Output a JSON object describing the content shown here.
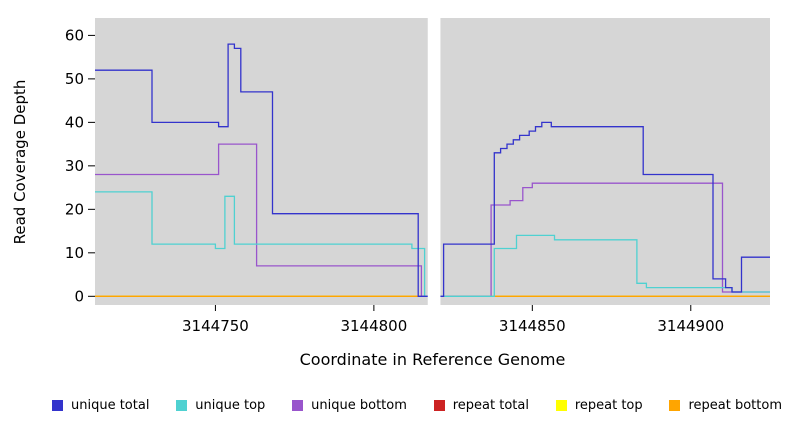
{
  "chart_data": {
    "type": "line",
    "subtype": "step",
    "title": "",
    "xlabel": "Coordinate in Reference Genome",
    "ylabel": "Read Coverage Depth",
    "xlim": [
      3144712,
      3144925
    ],
    "ylim": [
      -2,
      64
    ],
    "xticks": [
      3144750,
      3144800,
      3144850,
      3144900
    ],
    "yticks": [
      0,
      10,
      20,
      30,
      40,
      50,
      60
    ],
    "plot_bg": "#D6D6D6",
    "grid": false,
    "legend_position": "bottom",
    "gap_region": {
      "x0": 3144817,
      "x1": 3144821
    },
    "series": [
      {
        "name": "unique total",
        "color": "#3333CC",
        "points": [
          [
            3144712,
            52
          ],
          [
            3144730,
            40
          ],
          [
            3144751,
            39
          ],
          [
            3144754,
            58
          ],
          [
            3144756,
            57
          ],
          [
            3144758,
            47
          ],
          [
            3144768,
            19
          ],
          [
            3144814,
            0
          ],
          [
            3144822,
            12
          ],
          [
            3144838,
            33
          ],
          [
            3144840,
            34
          ],
          [
            3144842,
            35
          ],
          [
            3144844,
            36
          ],
          [
            3144846,
            37
          ],
          [
            3144849,
            38
          ],
          [
            3144851,
            39
          ],
          [
            3144853,
            40
          ],
          [
            3144856,
            39
          ],
          [
            3144885,
            28
          ],
          [
            3144907,
            4
          ],
          [
            3144911,
            2
          ],
          [
            3144913,
            1
          ],
          [
            3144916,
            9
          ]
        ]
      },
      {
        "name": "unique top",
        "color": "#4FD1D1",
        "points": [
          [
            3144712,
            24
          ],
          [
            3144730,
            12
          ],
          [
            3144750,
            11
          ],
          [
            3144753,
            23
          ],
          [
            3144756,
            12
          ],
          [
            3144812,
            11
          ],
          [
            3144816,
            0
          ],
          [
            3144838,
            11
          ],
          [
            3144845,
            14
          ],
          [
            3144857,
            13
          ],
          [
            3144883,
            3
          ],
          [
            3144886,
            2
          ],
          [
            3144913,
            1
          ]
        ]
      },
      {
        "name": "unique bottom",
        "color": "#9955CC",
        "points": [
          [
            3144712,
            28
          ],
          [
            3144751,
            35
          ],
          [
            3144763,
            7
          ],
          [
            3144815,
            0
          ],
          [
            3144837,
            21
          ],
          [
            3144843,
            22
          ],
          [
            3144847,
            25
          ],
          [
            3144850,
            26
          ],
          [
            3144910,
            1
          ]
        ]
      },
      {
        "name": "repeat total",
        "color": "#CC2222",
        "points": [
          [
            3144712,
            0
          ]
        ]
      },
      {
        "name": "repeat top",
        "color": "#FFFF00",
        "points": [
          [
            3144712,
            0
          ]
        ]
      },
      {
        "name": "repeat bottom",
        "color": "#FFA500",
        "points": [
          [
            3144712,
            0
          ]
        ]
      }
    ]
  }
}
